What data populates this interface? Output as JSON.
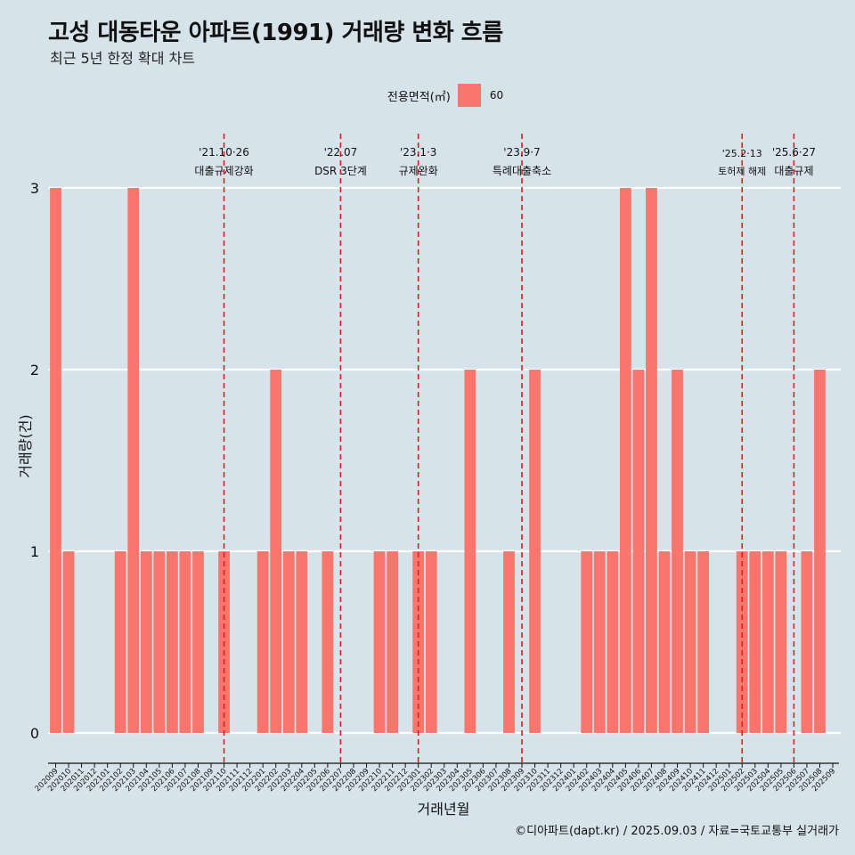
{
  "header": {
    "title": "고성 대동타운 아파트(1991) 거래량 변화 흐름",
    "subtitle": "최근 5년 한정 확대 차트"
  },
  "legend": {
    "title": "전용면적(㎡)",
    "items": [
      {
        "label": "60",
        "color": "#f8766d"
      }
    ]
  },
  "footer": {
    "caption": "©디아파트(dapt.kr) / 2025.09.03 / 자료=국토교통부 실거래가"
  },
  "chart_data": {
    "type": "bar",
    "xlabel": "거래년월",
    "ylabel": "거래량(건)",
    "ylim": [
      0,
      3
    ],
    "yticks": [
      "0",
      "1",
      "2",
      "3"
    ],
    "grid": "horizontal",
    "legend_position": "top",
    "bar_color": "#f8766d",
    "categories": [
      "202009",
      "202010",
      "202011",
      "202012",
      "202101",
      "202102",
      "202103",
      "202104",
      "202105",
      "202106",
      "202107",
      "202108",
      "202109",
      "202110",
      "202111",
      "202112",
      "202201",
      "202202",
      "202203",
      "202204",
      "202205",
      "202206",
      "202207",
      "202208",
      "202209",
      "202210",
      "202211",
      "202212",
      "202301",
      "202302",
      "202303",
      "202304",
      "202305",
      "202306",
      "202307",
      "202308",
      "202309",
      "202310",
      "202311",
      "202312",
      "202401",
      "202402",
      "202403",
      "202404",
      "202405",
      "202406",
      "202407",
      "202408",
      "202409",
      "202410",
      "202411",
      "202412",
      "202501",
      "202502",
      "202503",
      "202504",
      "202505",
      "202506",
      "202507",
      "202508",
      "202509"
    ],
    "series": [
      {
        "name": "60",
        "values": [
          3,
          1,
          0,
          0,
          0,
          1,
          3,
          1,
          1,
          1,
          1,
          1,
          0,
          1,
          0,
          0,
          1,
          2,
          1,
          1,
          0,
          1,
          0,
          0,
          0,
          1,
          1,
          0,
          1,
          1,
          0,
          0,
          2,
          0,
          0,
          1,
          0,
          2,
          0,
          0,
          0,
          1,
          1,
          1,
          3,
          2,
          3,
          1,
          2,
          1,
          1,
          0,
          0,
          1,
          1,
          1,
          1,
          0,
          1,
          2,
          0
        ]
      }
    ],
    "annotations": [
      {
        "at": "202110",
        "date": "'21.10·26",
        "text": "대출규제강화"
      },
      {
        "at": "202207",
        "date": "'22.07",
        "text": "DSR 3단계"
      },
      {
        "at": "202301",
        "date": "'23.1·3",
        "text": "규제완화"
      },
      {
        "at": "202309",
        "date": "'23.9·7",
        "text": "특례대출축소"
      },
      {
        "at": "202502",
        "date": "'25.2·13",
        "text": "토허제 해제",
        "small": true
      },
      {
        "at": "202506",
        "date": "'25.6·27",
        "text": "대출규제"
      }
    ]
  }
}
